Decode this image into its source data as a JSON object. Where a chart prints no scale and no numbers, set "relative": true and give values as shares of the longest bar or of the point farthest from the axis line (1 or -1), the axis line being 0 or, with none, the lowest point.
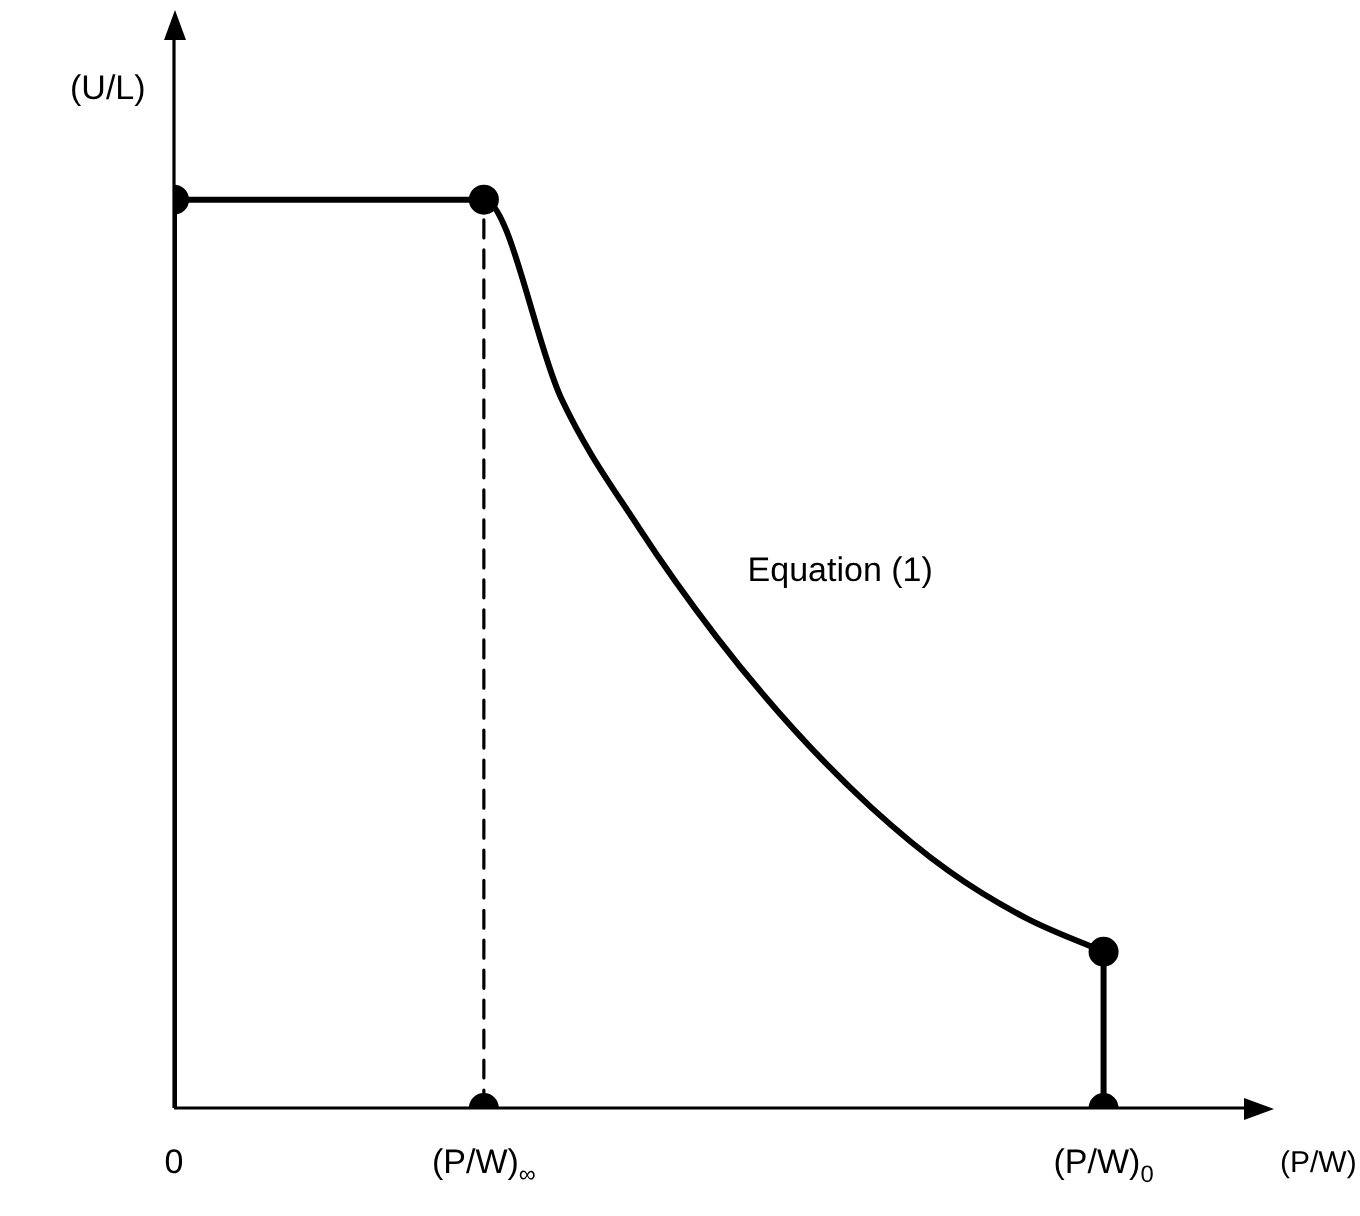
{
  "chart_data": {
    "type": "line",
    "relative": true,
    "xlabel": "(P/W)",
    "ylabel": "(U/L)",
    "categories": [
      "0",
      null,
      null,
      null,
      "(P/W)$_{∞}$",
      null,
      null,
      null,
      null,
      null,
      null,
      null,
      "(P/W)$_{0}$",
      null,
      null
    ],
    "tick_labels": "x",
    "grid": false,
    "legend": false,
    "series": [
      {
        "color": "#000000",
        "marker": "none",
        "line_style": "solid",
        "values": [
          1,
          1,
          1,
          1,
          1,
          0.781,
          0.639,
          0.519,
          0.417,
          0.331,
          0.261,
          0.209,
          0.172,
          null,
          null
        ]
      },
      {
        "type": "line",
        "color": "#000000",
        "marker": "none",
        "line_style": "solid",
        "x": [
          "0",
          "0"
        ],
        "values": [
          0,
          1
        ]
      },
      {
        "type": "line",
        "color": "#000000",
        "marker": "none",
        "line_style": "dashed",
        "x": [
          "(P/W)$_{∞}$",
          "(P/W)$_{∞}$"
        ],
        "values": [
          0,
          1
        ]
      },
      {
        "type": "line",
        "color": "#000000",
        "marker": "none",
        "line_style": "solid",
        "x": [
          "(P/W)$_{0}$",
          "(P/W)$_{0}$"
        ],
        "values": [
          0.172,
          0
        ]
      },
      {
        "type": "scatter",
        "color": "#000000",
        "marker": "circle",
        "x": [
          "0",
          "(P/W)$_{∞}$",
          "(P/W)$_{∞}$",
          "(P/W)$_{0}$",
          "(P/W)$_{0}$"
        ],
        "values": [
          1,
          1,
          0,
          0.172,
          0
        ]
      }
    ],
    "annotations": [
      "Equation (1)"
    ]
  }
}
